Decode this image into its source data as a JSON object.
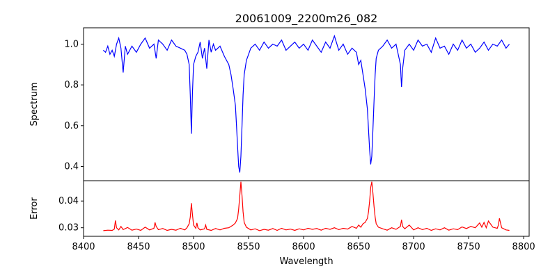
{
  "chart_data": [
    {
      "type": "line",
      "title": "20061009_2200m26_082",
      "xlabel": "",
      "ylabel": "Spectrum",
      "xlim": [
        8400,
        8805
      ],
      "ylim": [
        0.33,
        1.08
      ],
      "yticks": [
        0.4,
        0.6,
        0.8,
        1.0
      ],
      "ytick_labels": [
        "0.4",
        "0.6",
        "0.8",
        "1.0"
      ],
      "grid": false,
      "series": [
        {
          "color": "#0000ff",
          "x": [
            8418,
            8420,
            8422,
            8424,
            8426,
            8428,
            8430,
            8432,
            8434,
            8436,
            8438,
            8440,
            8444,
            8448,
            8452,
            8456,
            8460,
            8464,
            8466,
            8468,
            8472,
            8476,
            8480,
            8484,
            8488,
            8492,
            8494,
            8496,
            8497,
            8498,
            8499,
            8500,
            8502,
            8504,
            8506,
            8508,
            8510,
            8512,
            8514,
            8516,
            8518,
            8520,
            8524,
            8528,
            8532,
            8534,
            8536,
            8538,
            8539,
            8540,
            8541,
            8542,
            8543,
            8544,
            8545,
            8546,
            8548,
            8552,
            8556,
            8560,
            8564,
            8568,
            8572,
            8576,
            8580,
            8584,
            8588,
            8592,
            8596,
            8600,
            8604,
            8608,
            8612,
            8616,
            8620,
            8624,
            8628,
            8632,
            8636,
            8640,
            8644,
            8648,
            8650,
            8652,
            8654,
            8656,
            8658,
            8659,
            8660,
            8661,
            8662,
            8663,
            8664,
            8665,
            8666,
            8668,
            8672,
            8676,
            8680,
            8684,
            8688,
            8689,
            8690,
            8692,
            8696,
            8700,
            8704,
            8708,
            8712,
            8716,
            8720,
            8724,
            8728,
            8732,
            8736,
            8740,
            8744,
            8748,
            8752,
            8756,
            8760,
            8764,
            8768,
            8772,
            8776,
            8780,
            8784,
            8787
          ],
          "y": [
            0.97,
            0.96,
            0.99,
            0.95,
            0.97,
            0.94,
            1.0,
            1.03,
            0.98,
            0.86,
            0.99,
            0.95,
            0.99,
            0.96,
            1.0,
            1.03,
            0.98,
            1.0,
            0.93,
            1.02,
            1.0,
            0.97,
            1.02,
            0.99,
            0.98,
            0.97,
            0.95,
            0.9,
            0.75,
            0.56,
            0.76,
            0.9,
            0.94,
            0.96,
            1.01,
            0.93,
            0.98,
            0.88,
            1.02,
            0.96,
            1.0,
            0.97,
            0.99,
            0.94,
            0.9,
            0.85,
            0.78,
            0.7,
            0.6,
            0.5,
            0.4,
            0.37,
            0.45,
            0.6,
            0.75,
            0.85,
            0.92,
            0.98,
            1.0,
            0.97,
            1.01,
            0.98,
            1.0,
            0.99,
            1.02,
            0.97,
            0.99,
            1.01,
            0.98,
            1.0,
            0.97,
            1.02,
            0.99,
            0.96,
            1.01,
            0.98,
            1.04,
            0.97,
            1.0,
            0.95,
            0.98,
            0.96,
            0.9,
            0.92,
            0.85,
            0.78,
            0.68,
            0.58,
            0.48,
            0.41,
            0.45,
            0.58,
            0.72,
            0.85,
            0.93,
            0.97,
            0.99,
            1.02,
            0.98,
            1.0,
            0.9,
            0.79,
            0.88,
            0.97,
            1.0,
            0.97,
            1.02,
            0.99,
            1.0,
            0.96,
            1.03,
            0.98,
            0.99,
            0.95,
            1.0,
            0.97,
            1.02,
            0.98,
            1.0,
            0.96,
            0.98,
            1.01,
            0.97,
            1.0,
            0.99,
            1.02,
            0.98,
            1.0
          ]
        }
      ]
    },
    {
      "type": "line",
      "title": "",
      "xlabel": "Wavelength",
      "ylabel": "Error",
      "xlim": [
        8400,
        8805
      ],
      "ylim": [
        0.0268,
        0.0476
      ],
      "xticks": [
        8400,
        8450,
        8500,
        8550,
        8600,
        8650,
        8700,
        8750,
        8800
      ],
      "xtick_labels": [
        "8400",
        "8450",
        "8500",
        "8550",
        "8600",
        "8650",
        "8700",
        "8750",
        "8800"
      ],
      "yticks": [
        0.03,
        0.04
      ],
      "ytick_labels": [
        "0.03",
        "0.04"
      ],
      "grid": false,
      "series": [
        {
          "color": "#ff0000",
          "x": [
            8418,
            8422,
            8426,
            8428,
            8429,
            8430,
            8432,
            8434,
            8436,
            8440,
            8444,
            8448,
            8452,
            8456,
            8460,
            8464,
            8465,
            8466,
            8468,
            8472,
            8476,
            8480,
            8484,
            8488,
            8492,
            8494,
            8496,
            8497,
            8498,
            8499,
            8500,
            8502,
            8503,
            8504,
            8506,
            8510,
            8511,
            8512,
            8516,
            8520,
            8524,
            8528,
            8532,
            8534,
            8536,
            8538,
            8540,
            8541,
            8542,
            8543,
            8544,
            8545,
            8546,
            8548,
            8552,
            8556,
            8560,
            8564,
            8568,
            8572,
            8576,
            8580,
            8584,
            8588,
            8592,
            8596,
            8600,
            8604,
            8608,
            8612,
            8616,
            8620,
            8624,
            8628,
            8632,
            8636,
            8640,
            8644,
            8648,
            8650,
            8652,
            8654,
            8656,
            8658,
            8659,
            8660,
            8661,
            8662,
            8663,
            8664,
            8665,
            8666,
            8668,
            8672,
            8676,
            8680,
            8684,
            8688,
            8689,
            8690,
            8692,
            8696,
            8700,
            8704,
            8708,
            8712,
            8716,
            8720,
            8724,
            8728,
            8732,
            8736,
            8740,
            8744,
            8748,
            8752,
            8756,
            8760,
            8762,
            8764,
            8766,
            8768,
            8772,
            8776,
            8777,
            8778,
            8780,
            8784,
            8787
          ],
          "y": [
            0.0289,
            0.0291,
            0.029,
            0.0295,
            0.0327,
            0.03,
            0.0292,
            0.0305,
            0.0293,
            0.0301,
            0.0291,
            0.0295,
            0.029,
            0.0302,
            0.0292,
            0.0298,
            0.032,
            0.0305,
            0.0293,
            0.0297,
            0.029,
            0.0294,
            0.0291,
            0.0298,
            0.0292,
            0.03,
            0.0315,
            0.034,
            0.0392,
            0.035,
            0.031,
            0.0298,
            0.0318,
            0.03,
            0.0292,
            0.0296,
            0.031,
            0.0294,
            0.029,
            0.0297,
            0.0292,
            0.0298,
            0.03,
            0.0305,
            0.031,
            0.0318,
            0.0335,
            0.037,
            0.042,
            0.0472,
            0.042,
            0.036,
            0.032,
            0.0302,
            0.0292,
            0.0296,
            0.0289,
            0.0294,
            0.0291,
            0.0297,
            0.029,
            0.0298,
            0.0292,
            0.0295,
            0.029,
            0.0296,
            0.0292,
            0.0298,
            0.0294,
            0.0297,
            0.0291,
            0.0298,
            0.0294,
            0.03,
            0.0293,
            0.0298,
            0.0295,
            0.0305,
            0.0298,
            0.031,
            0.0302,
            0.0315,
            0.032,
            0.0335,
            0.036,
            0.04,
            0.045,
            0.0472,
            0.043,
            0.038,
            0.034,
            0.0315,
            0.0302,
            0.0296,
            0.0291,
            0.03,
            0.0294,
            0.0305,
            0.033,
            0.0305,
            0.0296,
            0.031,
            0.0292,
            0.03,
            0.0293,
            0.0298,
            0.029,
            0.0296,
            0.0292,
            0.03,
            0.0291,
            0.0296,
            0.0293,
            0.0303,
            0.0297,
            0.0305,
            0.03,
            0.0318,
            0.0302,
            0.032,
            0.03,
            0.0325,
            0.0302,
            0.0298,
            0.031,
            0.0335,
            0.03,
            0.0292,
            0.029
          ]
        }
      ]
    }
  ]
}
